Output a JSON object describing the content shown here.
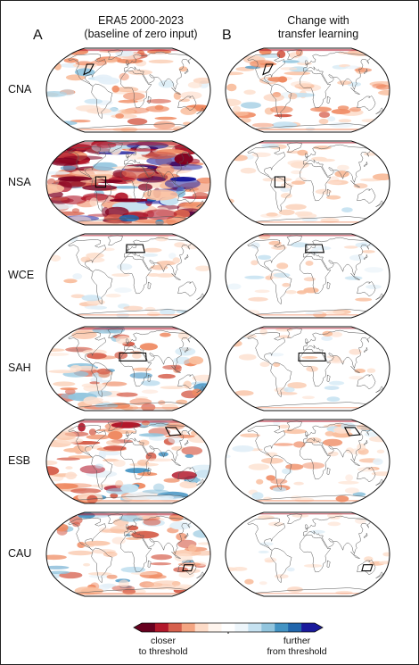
{
  "panels": {
    "A": {
      "letter": "A",
      "title_line1": "ERA5 2000-2023",
      "title_line2": "(baseline of zero input)"
    },
    "B": {
      "letter": "B",
      "title_line1": "Change with",
      "title_line2": "transfer learning"
    }
  },
  "rows": [
    {
      "label": "CNA",
      "region": "central-north-america",
      "intensity_A": 0.35,
      "intensity_B": 0.35
    },
    {
      "label": "NSA",
      "region": "northern-south-america",
      "intensity_A": 1.0,
      "intensity_B": 0.15
    },
    {
      "label": "WCE",
      "region": "western-central-europe",
      "intensity_A": 0.12,
      "intensity_B": 0.12
    },
    {
      "label": "SAH",
      "region": "sahara",
      "intensity_A": 0.45,
      "intensity_B": 0.08
    },
    {
      "label": "ESB",
      "region": "east-siberia",
      "intensity_A": 0.55,
      "intensity_B": 0.25
    },
    {
      "label": "CAU",
      "region": "central-australia",
      "intensity_A": 0.45,
      "intensity_B": 0.04
    }
  ],
  "colorbar": {
    "colors": [
      "#67001f",
      "#b2182b",
      "#d6604d",
      "#f4a582",
      "#fddbc7",
      "#fff5ee",
      "#ffffff",
      "#eef6fb",
      "#c6e2f1",
      "#92c5de",
      "#4393c3",
      "#2166ac",
      "#1a1a9c"
    ],
    "left_label_line1": "closer",
    "left_label_line2": "to threshold",
    "right_label_line1": "further",
    "right_label_line2": "from threshold"
  }
}
